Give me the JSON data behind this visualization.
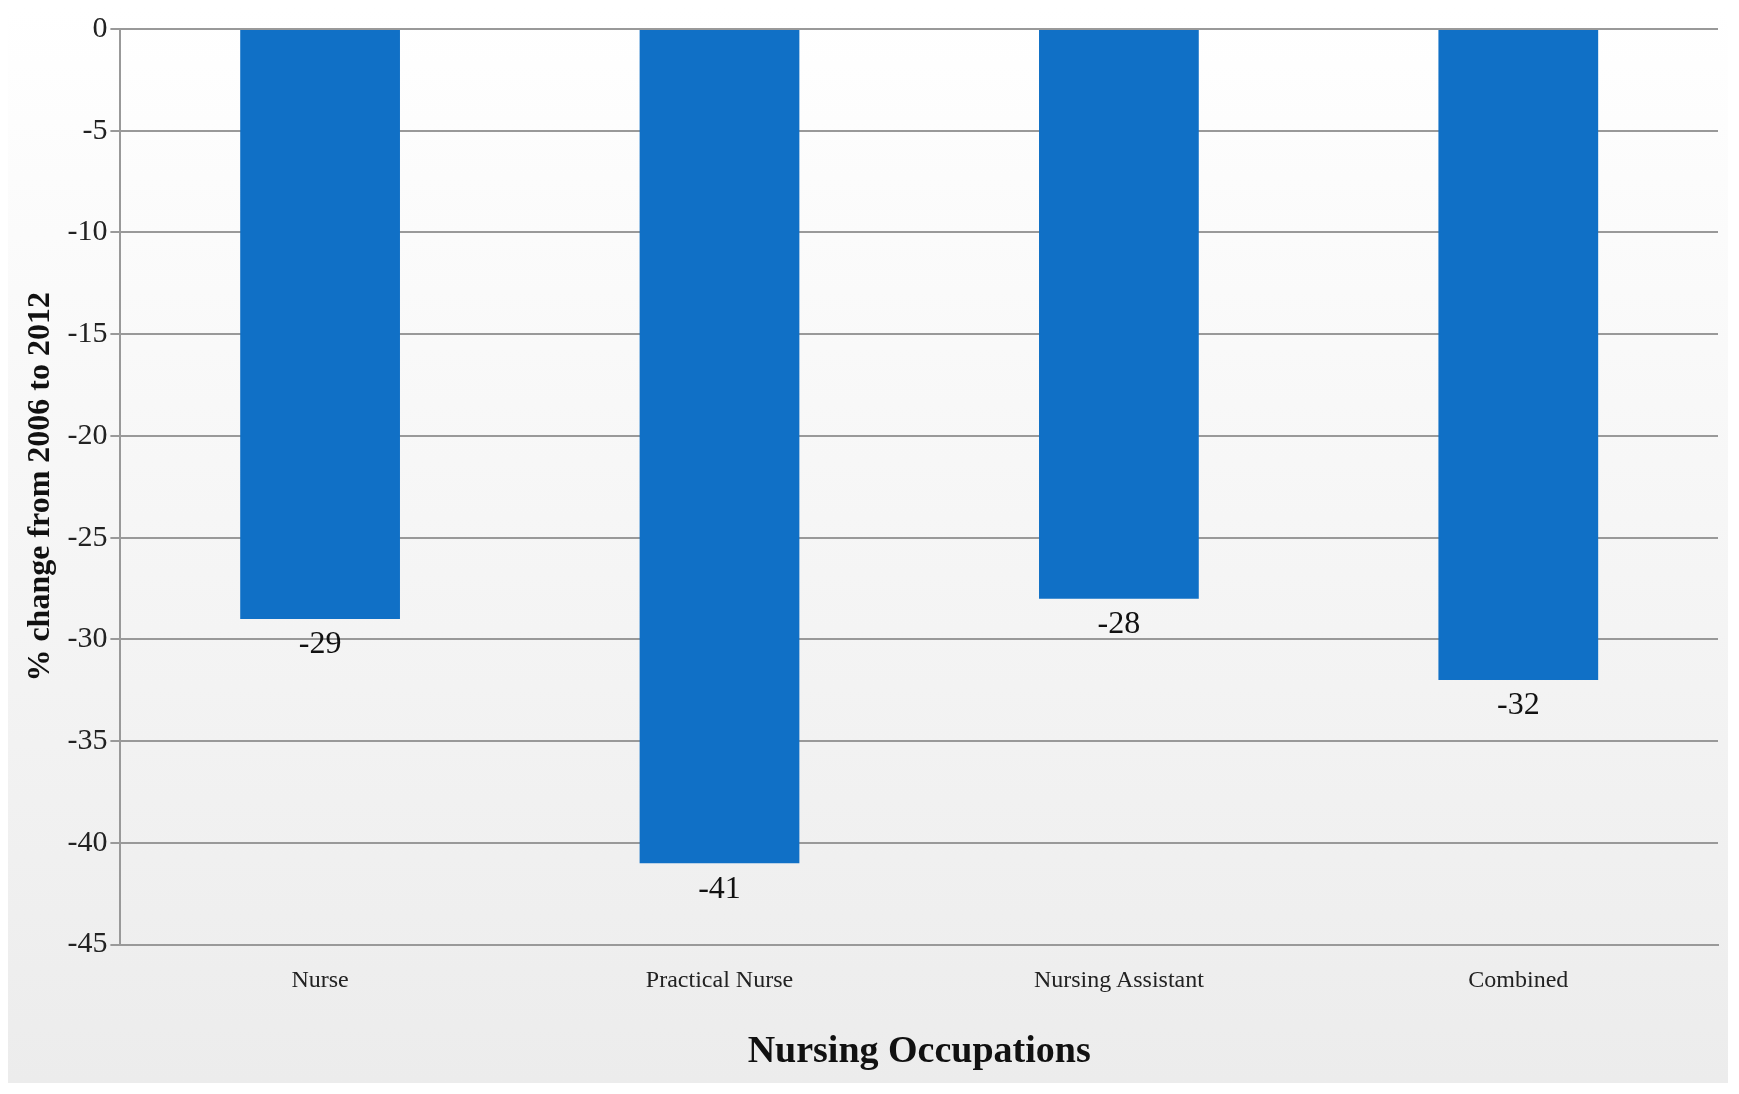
{
  "chart_data": {
    "type": "bar",
    "xlabel": "Nursing Occupations",
    "ylabel": "% change from 2006 to 2012",
    "categories": [
      "Nurse",
      "Practical Nurse",
      "Nursing Assistant",
      "Combined"
    ],
    "values": [
      -29,
      -41,
      -28,
      -32
    ],
    "color": "#1070c6",
    "ylim": [
      -45,
      0
    ],
    "yticks": [
      0,
      -5,
      -10,
      -15,
      -20,
      -25,
      -30,
      -35,
      -40,
      -45
    ],
    "grid": "y",
    "legend": false,
    "data_labels": true
  }
}
